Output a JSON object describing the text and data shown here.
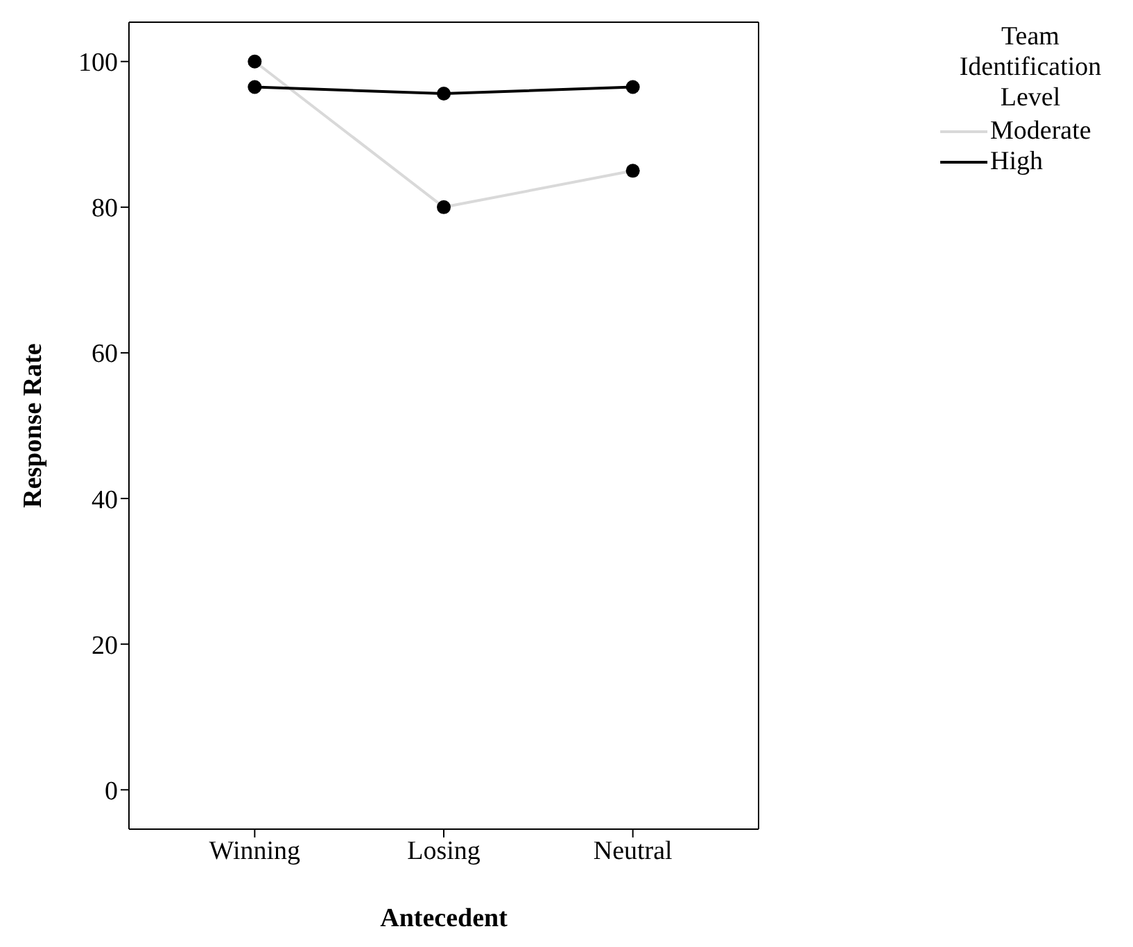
{
  "chart_data": {
    "type": "line",
    "xlabel": "Antecedent",
    "ylabel": "Response Rate",
    "legend_title": "Team Identification Level",
    "categories": [
      "Winning",
      "Losing",
      "Neutral"
    ],
    "series": [
      {
        "name": "Moderate",
        "color": "#d9d9d9",
        "values": [
          100,
          80,
          85
        ]
      },
      {
        "name": "High",
        "color": "#000000",
        "values": [
          96.5,
          95.6,
          96.5
        ]
      }
    ],
    "ylim": [
      -5.4,
      105.4
    ],
    "yticks": [
      0,
      20,
      40,
      60,
      80,
      100
    ],
    "grid": false,
    "legend": "top right",
    "marker": "circle",
    "line_style": "solid"
  }
}
